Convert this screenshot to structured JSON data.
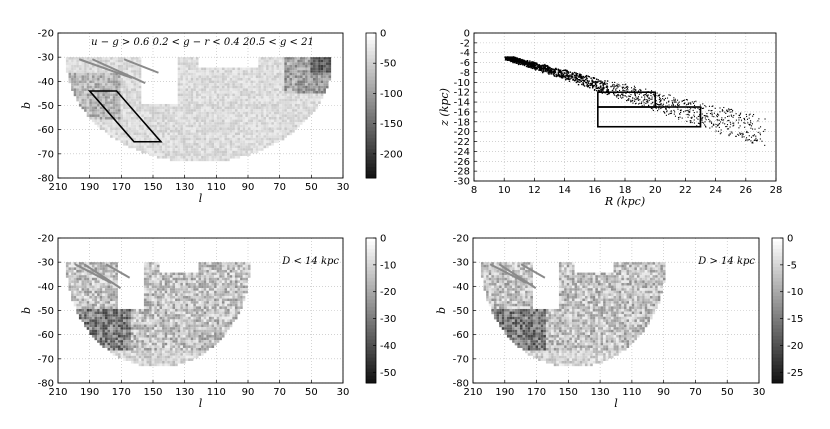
{
  "chart_data": [
    {
      "type": "heatmap",
      "title": "u − g > 0.6   0.2 < g − r < 0.4   20.5 < g < 21",
      "xlabel": "l",
      "ylabel": "b",
      "xlim": [
        210,
        30
      ],
      "ylim": [
        -80,
        -20
      ],
      "xticks": [
        "210",
        "190",
        "170",
        "150",
        "130",
        "110",
        "90",
        "70",
        "50",
        "30"
      ],
      "yticks": [
        "-20",
        "-30",
        "-40",
        "-50",
        "-60",
        "-70",
        "-80"
      ],
      "colorbar": {
        "ticks": [
          "0",
          "-50",
          "-100",
          "-150",
          "-200"
        ],
        "range": [
          -240,
          0
        ]
      },
      "footprint": {
        "l_max": 205,
        "l_min": 38,
        "b_top": -30,
        "b_bottom": -73
      },
      "selection_box": [
        [
          190,
          -44
        ],
        [
          173,
          -44
        ],
        [
          145,
          -65
        ],
        [
          162,
          -65
        ]
      ],
      "annotation": ""
    },
    {
      "type": "scatter",
      "title": "",
      "xlabel": "R (kpc)",
      "ylabel": "z (kpc)",
      "xlim": [
        8,
        28
      ],
      "ylim": [
        -30,
        0
      ],
      "xticks": [
        "8",
        "10",
        "12",
        "14",
        "16",
        "18",
        "20",
        "22",
        "24",
        "26",
        "28"
      ],
      "yticks": [
        "0",
        "-2",
        "-4",
        "-6",
        "-8",
        "-10",
        "-12",
        "-14",
        "-16",
        "-18",
        "-20",
        "-22",
        "-24",
        "-26",
        "-28",
        "-30"
      ],
      "stream": {
        "start": [
          10.3,
          -5
        ],
        "end": [
          27,
          -20
        ]
      },
      "boxes": [
        {
          "R": [
            16.2,
            20
          ],
          "z": [
            -12,
            -15
          ]
        },
        {
          "R": [
            16.2,
            23
          ],
          "z": [
            -15,
            -19
          ]
        }
      ]
    },
    {
      "type": "heatmap",
      "title": "",
      "xlabel": "l",
      "ylabel": "b",
      "xlim": [
        210,
        30
      ],
      "ylim": [
        -80,
        -20
      ],
      "xticks": [
        "210",
        "190",
        "170",
        "150",
        "130",
        "110",
        "90",
        "70",
        "50",
        "30"
      ],
      "yticks": [
        "-20",
        "-30",
        "-40",
        "-50",
        "-60",
        "-70",
        "-80"
      ],
      "colorbar": {
        "ticks": [
          "0",
          "-10",
          "-20",
          "-30",
          "-40",
          "-50"
        ],
        "range": [
          -54,
          0
        ]
      },
      "footprint": {
        "l_max": 205,
        "l_min": 90,
        "b_top": -30,
        "b_bottom": -73
      },
      "annotation": "D < 14 kpc"
    },
    {
      "type": "heatmap",
      "title": "",
      "xlabel": "l",
      "ylabel": "b",
      "xlim": [
        210,
        30
      ],
      "ylim": [
        -80,
        -20
      ],
      "xticks": [
        "210",
        "190",
        "170",
        "150",
        "130",
        "110",
        "90",
        "70",
        "50",
        "30"
      ],
      "yticks": [
        "-20",
        "-30",
        "-40",
        "-50",
        "-60",
        "-70",
        "-80"
      ],
      "colorbar": {
        "ticks": [
          "0",
          "-5",
          "-10",
          "-15",
          "-20",
          "-25"
        ],
        "range": [
          -27,
          0
        ]
      },
      "footprint": {
        "l_max": 205,
        "l_min": 90,
        "b_top": -30,
        "b_bottom": -73
      },
      "annotation": "D > 14 kpc"
    }
  ],
  "colors": {
    "frame": "#000000",
    "grid": "#b8b8b8",
    "background": "#ffffff"
  }
}
